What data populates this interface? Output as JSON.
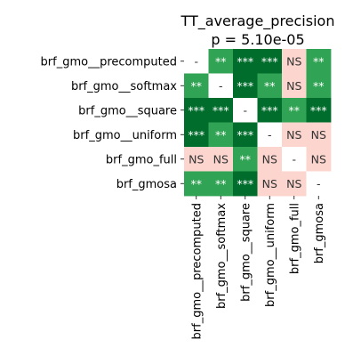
{
  "chart_data": {
    "type": "heatmap",
    "title": "TT_average_precision",
    "subtitle": "p = 5.10e-05",
    "row_labels": [
      "brf_gmo__precomputed",
      "brf_gmo__softmax",
      "brf_gmo__square",
      "brf_gmo__uniform",
      "brf_gmo_full",
      "brf_gmosa"
    ],
    "col_labels": [
      "brf_gmo__precomputed",
      "brf_gmo__softmax",
      "brf_gmo__square",
      "brf_gmo__uniform",
      "brf_gmo_full",
      "brf_gmosa"
    ],
    "cells": [
      [
        "-",
        "**",
        "***",
        "***",
        "NS",
        "**"
      ],
      [
        "**",
        "-",
        "***",
        "**",
        "NS",
        "**"
      ],
      [
        "***",
        "***",
        "-",
        "***",
        "**",
        "***"
      ],
      [
        "***",
        "**",
        "***",
        "-",
        "NS",
        "NS"
      ],
      [
        "NS",
        "NS",
        "**",
        "NS",
        "-",
        "NS"
      ],
      [
        "**",
        "**",
        "***",
        "NS",
        "NS",
        "-"
      ]
    ],
    "colors": {
      "***": "#006d2c",
      "**": "#31a354",
      "NS": "#fcd5ce",
      "-": "#ffffff"
    },
    "text_colors": {
      "***": "#ffffff",
      "**": "#ffffff",
      "NS": "#333333",
      "-": "#333333"
    }
  }
}
